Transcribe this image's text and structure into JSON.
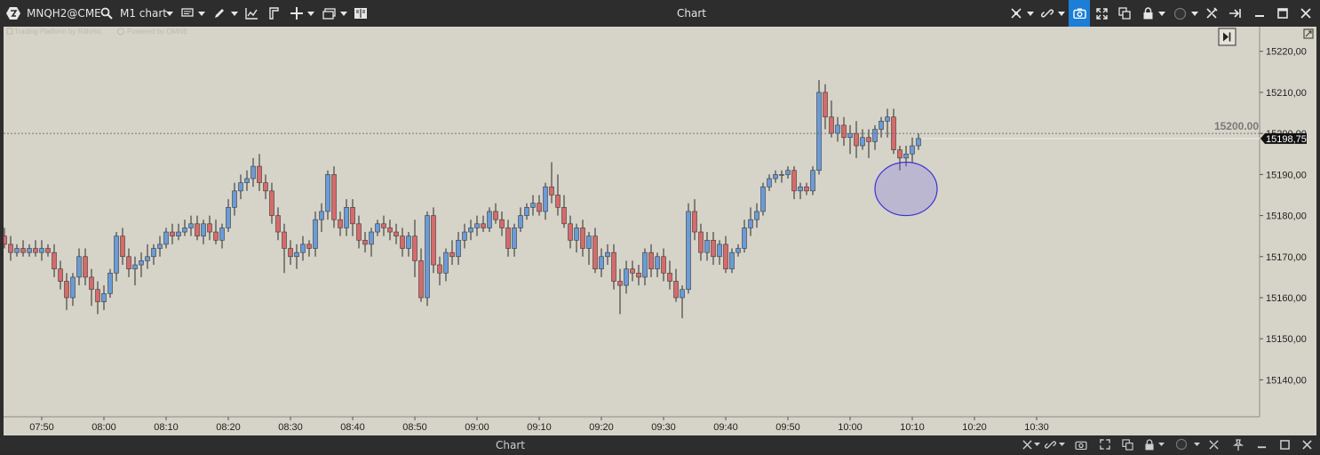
{
  "toolbar": {
    "symbol": "MNQH2@CME",
    "timeframe": "M1 chart",
    "window_title": "Chart",
    "accent": "#1c7ed6"
  },
  "watermark": {
    "left": "Trading Platform by Rithmic",
    "right": "Powered by OMNE"
  },
  "bottom_bar": {
    "title": "Chart"
  },
  "chart_data": {
    "type": "candlestick",
    "x_tick_labels": [
      "07:50",
      "08:00",
      "08:10",
      "08:20",
      "08:30",
      "08:40",
      "08:50",
      "09:00",
      "09:10",
      "09:20",
      "09:30",
      "09:40",
      "09:50",
      "10:00",
      "10:10",
      "10:20",
      "10:30"
    ],
    "y_tick_labels": [
      "15140,00",
      "15150,00",
      "15160,00",
      "15170,00",
      "15180,00",
      "15190,00",
      "15200,00",
      "15210,00",
      "15220,00"
    ],
    "ylim": [
      15131,
      15226
    ],
    "level_line": {
      "label": "15200.00",
      "value": 15200
    },
    "last_price": {
      "label": "15198,75",
      "value": 15198.75
    },
    "annotation": {
      "type": "ellipse",
      "from_time": "10:04",
      "to_time": "10:14",
      "low": 15180,
      "high": 15193
    },
    "up_color": "#6b9bd8",
    "down_color": "#d66b6b",
    "candles": [
      [
        15180,
        15182,
        15173,
        15175
      ],
      [
        15175,
        15177,
        15172,
        15173
      ],
      [
        15173,
        15175,
        15169,
        15171
      ],
      [
        15171,
        15173,
        15170,
        15172
      ],
      [
        15172,
        15174,
        15170,
        15171
      ],
      [
        15171,
        15173,
        15170,
        15172
      ],
      [
        15172,
        15174,
        15170,
        15171
      ],
      [
        15171,
        15174,
        15169,
        15172
      ],
      [
        15172,
        15173,
        15170,
        15171
      ],
      [
        15171,
        15173,
        15165,
        15167
      ],
      [
        15167,
        15169,
        15162,
        15164
      ],
      [
        15164,
        15166,
        15157,
        15160
      ],
      [
        15160,
        15166,
        15158,
        15165
      ],
      [
        15165,
        15172,
        15163,
        15170
      ],
      [
        15170,
        15172,
        15163,
        15165
      ],
      [
        15165,
        15167,
        15158,
        15162
      ],
      [
        15162,
        15164,
        15156,
        15159
      ],
      [
        15159,
        15163,
        15157,
        15161
      ],
      [
        15161,
        15167,
        15160,
        15166
      ],
      [
        15166,
        15176,
        15164,
        15175
      ],
      [
        15175,
        15177,
        15168,
        15170
      ],
      [
        15170,
        15172,
        15165,
        15167
      ],
      [
        15167,
        15170,
        15163,
        15168
      ],
      [
        15168,
        15171,
        15165,
        15169
      ],
      [
        15169,
        15173,
        15167,
        15170
      ],
      [
        15170,
        15173,
        15168,
        15172
      ],
      [
        15172,
        15175,
        15170,
        15173
      ],
      [
        15173,
        15177,
        15172,
        15176
      ],
      [
        15176,
        15178,
        15173,
        15175
      ],
      [
        15175,
        15178,
        15174,
        15176
      ],
      [
        15176,
        15179,
        15175,
        15177
      ],
      [
        15177,
        15180,
        15175,
        15178
      ],
      [
        15178,
        15180,
        15174,
        15175
      ],
      [
        15175,
        15179,
        15173,
        15178
      ],
      [
        15178,
        15180,
        15174,
        15176
      ],
      [
        15176,
        15179,
        15173,
        15174
      ],
      [
        15174,
        15178,
        15172,
        15177
      ],
      [
        15177,
        15184,
        15176,
        15182
      ],
      [
        15182,
        15188,
        15180,
        15186
      ],
      [
        15186,
        15190,
        15184,
        15188
      ],
      [
        15188,
        15191,
        15186,
        15189
      ],
      [
        15189,
        15194,
        15187,
        15192
      ],
      [
        15192,
        15195,
        15186,
        15188
      ],
      [
        15188,
        15190,
        15184,
        15186
      ],
      [
        15186,
        15188,
        15178,
        15180
      ],
      [
        15180,
        15182,
        15174,
        15176
      ],
      [
        15176,
        15178,
        15166,
        15172
      ],
      [
        15172,
        15174,
        15168,
        15170
      ],
      [
        15170,
        15173,
        15167,
        15171
      ],
      [
        15171,
        15175,
        15169,
        15173
      ],
      [
        15173,
        15174,
        15170,
        15172
      ],
      [
        15172,
        15181,
        15170,
        15179
      ],
      [
        15179,
        15183,
        15176,
        15181
      ],
      [
        15181,
        15191,
        15179,
        15190
      ],
      [
        15190,
        15192,
        15177,
        15179
      ],
      [
        15179,
        15181,
        15175,
        15177
      ],
      [
        15177,
        15184,
        15175,
        15182
      ],
      [
        15182,
        15184,
        15175,
        15178
      ],
      [
        15178,
        15180,
        15172,
        15174
      ],
      [
        15174,
        15176,
        15171,
        15173
      ],
      [
        15173,
        15177,
        15170,
        15176
      ],
      [
        15176,
        15179,
        15175,
        15178
      ],
      [
        15178,
        15180,
        15175,
        15177
      ],
      [
        15177,
        15179,
        15174,
        15176
      ],
      [
        15176,
        15178,
        15173,
        15175
      ],
      [
        15175,
        15177,
        15170,
        15172
      ],
      [
        15172,
        15176,
        15170,
        15175
      ],
      [
        15175,
        15179,
        15165,
        15169
      ],
      [
        15169,
        15172,
        15159,
        15160
      ],
      [
        15160,
        15181,
        15158,
        15180
      ],
      [
        15180,
        15182,
        15166,
        15168
      ],
      [
        15168,
        15170,
        15163,
        15166
      ],
      [
        15166,
        15172,
        15164,
        15171
      ],
      [
        15171,
        15174,
        15168,
        15170
      ],
      [
        15170,
        15176,
        15168,
        15174
      ],
      [
        15174,
        15178,
        15172,
        15176
      ],
      [
        15176,
        15179,
        15174,
        15177
      ],
      [
        15177,
        15180,
        15175,
        15178
      ],
      [
        15178,
        15180,
        15176,
        15177
      ],
      [
        15177,
        15182,
        15176,
        15181
      ],
      [
        15181,
        15183,
        15178,
        15179
      ],
      [
        15179,
        15181,
        15175,
        15177
      ],
      [
        15177,
        15179,
        15170,
        15172
      ],
      [
        15172,
        15178,
        15170,
        15177
      ],
      [
        15177,
        15182,
        15176,
        15180
      ],
      [
        15180,
        15183,
        15179,
        15182
      ],
      [
        15182,
        15185,
        15180,
        15183
      ],
      [
        15183,
        15185,
        15180,
        15181
      ],
      [
        15181,
        15188,
        15179,
        15187
      ],
      [
        15187,
        15193,
        15183,
        15185
      ],
      [
        15185,
        15190,
        15180,
        15182
      ],
      [
        15182,
        15185,
        15177,
        15178
      ],
      [
        15178,
        15180,
        15172,
        15174
      ],
      [
        15174,
        15178,
        15171,
        15177
      ],
      [
        15177,
        15179,
        15170,
        15172
      ],
      [
        15172,
        15176,
        15168,
        15175
      ],
      [
        15175,
        15177,
        15166,
        15167
      ],
      [
        15167,
        15172,
        15165,
        15170
      ],
      [
        15170,
        15173,
        15168,
        15171
      ],
      [
        15171,
        15173,
        15162,
        15164
      ],
      [
        15164,
        15167,
        15156,
        15163
      ],
      [
        15163,
        15169,
        15161,
        15167
      ],
      [
        15167,
        15169,
        15164,
        15166
      ],
      [
        15166,
        15168,
        15163,
        15165
      ],
      [
        15165,
        15172,
        15163,
        15171
      ],
      [
        15171,
        15173,
        15165,
        15167
      ],
      [
        15167,
        15171,
        15165,
        15170
      ],
      [
        15170,
        15172,
        15164,
        15166
      ],
      [
        15166,
        15169,
        15162,
        15164
      ],
      [
        15164,
        15167,
        15159,
        15160
      ],
      [
        15160,
        15163,
        15155,
        15162
      ],
      [
        15162,
        15183,
        15161,
        15181
      ],
      [
        15181,
        15184,
        15174,
        15176
      ],
      [
        15176,
        15178,
        15169,
        15171
      ],
      [
        15171,
        15176,
        15169,
        15174
      ],
      [
        15174,
        15176,
        15168,
        15170
      ],
      [
        15170,
        15174,
        15168,
        15173
      ],
      [
        15173,
        15175,
        15166,
        15167
      ],
      [
        15167,
        15172,
        15166,
        15171
      ],
      [
        15171,
        15173,
        15170,
        15172
      ],
      [
        15172,
        15179,
        15171,
        15177
      ],
      [
        15177,
        15182,
        15175,
        15179
      ],
      [
        15179,
        15183,
        15177,
        15181
      ],
      [
        15181,
        15188,
        15180,
        15187
      ],
      [
        15187,
        15190,
        15186,
        15189
      ],
      [
        15189,
        15191,
        15188,
        15190
      ],
      [
        15190,
        15191,
        15188,
        15190
      ],
      [
        15190,
        15192,
        15189,
        15191
      ],
      [
        15191,
        15192,
        15184,
        15186
      ],
      [
        15186,
        15188,
        15184,
        15187
      ],
      [
        15187,
        15188,
        15185,
        15186
      ],
      [
        15186,
        15192,
        15185,
        15191
      ],
      [
        15191,
        15213,
        15190,
        15210
      ],
      [
        15210,
        15212,
        15201,
        15204
      ],
      [
        15204,
        15208,
        15199,
        15200
      ],
      [
        15200,
        15204,
        15198,
        15202
      ],
      [
        15202,
        15204,
        15197,
        15199
      ],
      [
        15199,
        15202,
        15195,
        15200
      ],
      [
        15200,
        15203,
        15194,
        15197
      ],
      [
        15197,
        15201,
        15196,
        15199
      ],
      [
        15199,
        15201,
        15194,
        15198
      ],
      [
        15198,
        15202,
        15196,
        15201
      ],
      [
        15201,
        15204,
        15199,
        15203
      ],
      [
        15203,
        15206,
        15199,
        15204
      ],
      [
        15204,
        15206,
        15195,
        15196
      ],
      [
        15196,
        15197,
        15191,
        15194
      ],
      [
        15194,
        15197,
        15192,
        15195
      ],
      [
        15195,
        15199,
        15193,
        15197
      ],
      [
        15197,
        15200,
        15196,
        15198.75
      ]
    ]
  }
}
